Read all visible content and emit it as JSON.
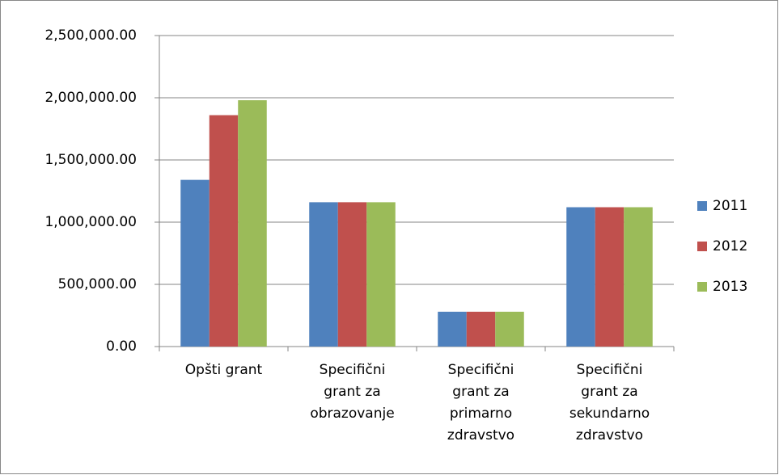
{
  "chart_data": {
    "type": "bar",
    "categories": [
      "Opšti grant",
      "Specifični grant za obrazovanje",
      "Specifični grant za primarno zdravstvo",
      "Specifični grant za sekundarno zdravstvo"
    ],
    "series": [
      {
        "name": "2011",
        "color": "#4f81bd",
        "values": [
          1340000,
          1160000,
          280000,
          1120000
        ]
      },
      {
        "name": "2012",
        "color": "#c0504d",
        "values": [
          1860000,
          1160000,
          280000,
          1120000
        ]
      },
      {
        "name": "2013",
        "color": "#9bbb59",
        "values": [
          1980000,
          1160000,
          280000,
          1120000
        ]
      }
    ],
    "ylim": [
      0,
      2500000
    ],
    "yticks": [
      {
        "value": 0,
        "label": "0.00"
      },
      {
        "value": 500000,
        "label": "500,000.00"
      },
      {
        "value": 1000000,
        "label": "1,000,000.00"
      },
      {
        "value": 1500000,
        "label": "1,500,000.00"
      },
      {
        "value": 2000000,
        "label": "2,000,000.00"
      },
      {
        "value": 2500000,
        "label": "2,500,000.00"
      }
    ],
    "grid": true,
    "legend": "right"
  }
}
